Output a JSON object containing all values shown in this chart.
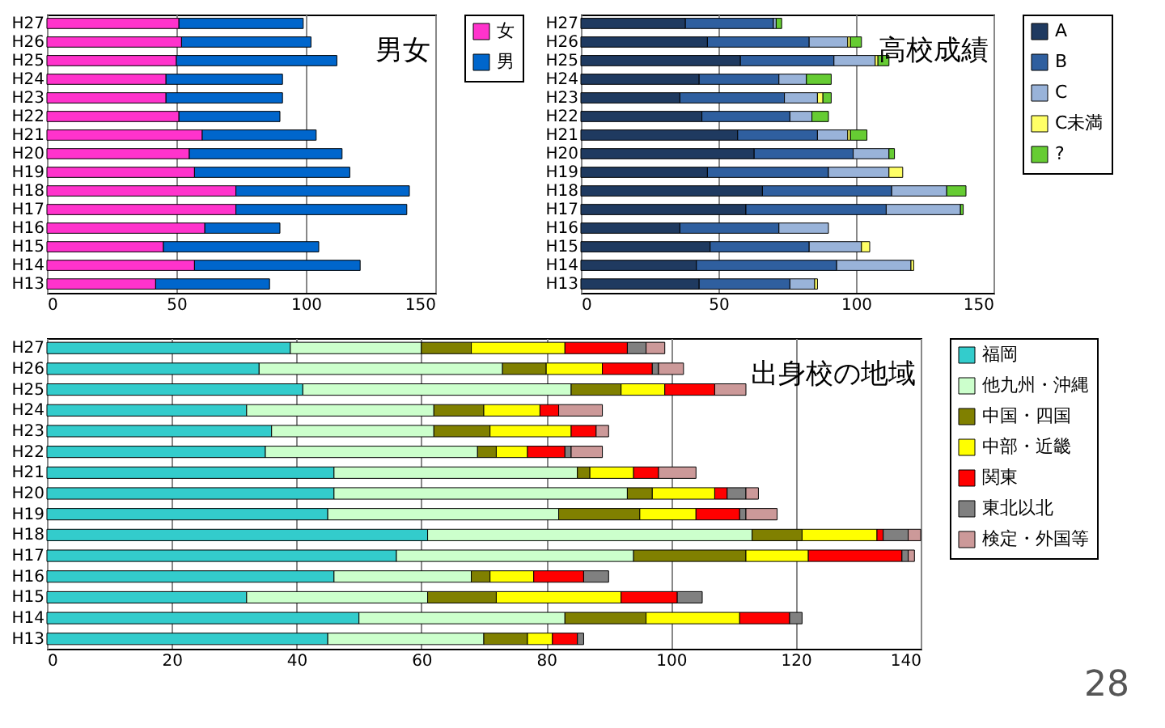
{
  "chart_data": [
    {
      "type": "bar",
      "title": "男女",
      "orientation": "horizontal",
      "stacked": true,
      "categories": [
        "H27",
        "H26",
        "H25",
        "H24",
        "H23",
        "H22",
        "H21",
        "H20",
        "H19",
        "H18",
        "H17",
        "H16",
        "H15",
        "H14",
        "H13"
      ],
      "xlim": [
        0,
        150
      ],
      "xticks": [
        0,
        50,
        100,
        150
      ],
      "grid": "x",
      "legend": "right",
      "series": [
        {
          "name": "女",
          "color": "#ff33cc",
          "values": [
            51,
            52,
            50,
            46,
            46,
            51,
            60,
            55,
            57,
            73,
            73,
            61,
            45,
            57,
            42
          ]
        },
        {
          "name": "男",
          "color": "#0066cc",
          "values": [
            48,
            50,
            62,
            45,
            45,
            39,
            44,
            59,
            60,
            67,
            66,
            29,
            60,
            64,
            44
          ]
        }
      ]
    },
    {
      "type": "bar",
      "title": "高校成績",
      "orientation": "horizontal",
      "stacked": true,
      "categories": [
        "H27",
        "H26",
        "H25",
        "H24",
        "H23",
        "H22",
        "H21",
        "H20",
        "H19",
        "H18",
        "H17",
        "H16",
        "H15",
        "H14",
        "H13"
      ],
      "xlim": [
        0,
        150
      ],
      "xticks": [
        0,
        50,
        100,
        150
      ],
      "grid": "x",
      "legend": "right",
      "series": [
        {
          "name": "A",
          "color": "#1f3a60",
          "values": [
            38,
            46,
            58,
            43,
            36,
            44,
            57,
            63,
            46,
            66,
            60,
            36,
            47,
            42,
            43
          ]
        },
        {
          "name": "B",
          "color": "#2f5f9f",
          "values": [
            32,
            37,
            34,
            29,
            38,
            32,
            29,
            36,
            44,
            47,
            51,
            36,
            36,
            51,
            33
          ]
        },
        {
          "name": "C",
          "color": "#99b3d9",
          "values": [
            1,
            14,
            15,
            10,
            12,
            8,
            11,
            13,
            22,
            20,
            27,
            18,
            19,
            27,
            9
          ]
        },
        {
          "name": "C未満",
          "color": "#ffff66",
          "values": [
            null,
            1,
            1,
            null,
            2,
            null,
            1,
            null,
            5,
            null,
            null,
            null,
            3,
            1,
            1
          ]
        },
        {
          "name": "?",
          "color": "#66cc33",
          "values": [
            2,
            4,
            4,
            9,
            3,
            6,
            6,
            2,
            null,
            7,
            1,
            null,
            null,
            null,
            null
          ]
        }
      ]
    },
    {
      "type": "bar",
      "title": "出身校の地域",
      "orientation": "horizontal",
      "stacked": true,
      "categories": [
        "H27",
        "H26",
        "H25",
        "H24",
        "H23",
        "H22",
        "H21",
        "H20",
        "H19",
        "H18",
        "H17",
        "H16",
        "H15",
        "H14",
        "H13"
      ],
      "xlim": [
        0,
        140
      ],
      "xticks": [
        0,
        20,
        40,
        60,
        80,
        100,
        120,
        140
      ],
      "grid": "x",
      "legend": "right",
      "annotations": [
        "28"
      ],
      "series": [
        {
          "name": "福岡",
          "color": "#33cccc",
          "values": [
            39,
            34,
            41,
            32,
            36,
            35,
            46,
            46,
            45,
            61,
            56,
            46,
            32,
            50,
            45
          ]
        },
        {
          "name": "他九州・沖縄",
          "color": "#ccffcc",
          "values": [
            21,
            39,
            43,
            30,
            26,
            34,
            39,
            47,
            37,
            52,
            38,
            22,
            29,
            33,
            25
          ]
        },
        {
          "name": "中国・四国",
          "color": "#808000",
          "values": [
            8,
            7,
            8,
            8,
            9,
            3,
            2,
            4,
            13,
            8,
            18,
            3,
            11,
            13,
            7
          ]
        },
        {
          "name": "中部・近畿",
          "color": "#ffff00",
          "values": [
            15,
            9,
            7,
            9,
            13,
            5,
            7,
            10,
            9,
            12,
            10,
            7,
            20,
            15,
            4
          ]
        },
        {
          "name": "関東",
          "color": "#ff0000",
          "values": [
            10,
            8,
            8,
            3,
            4,
            6,
            4,
            2,
            7,
            1,
            15,
            8,
            9,
            8,
            4
          ]
        },
        {
          "name": "東北以北",
          "color": "#808080",
          "values": [
            3,
            1,
            null,
            null,
            null,
            1,
            null,
            3,
            1,
            4,
            1,
            4,
            4,
            2,
            1
          ]
        },
        {
          "name": "検定・外国等",
          "color": "#cc9999",
          "values": [
            3,
            4,
            5,
            7,
            2,
            5,
            6,
            2,
            5,
            2,
            1,
            null,
            null,
            null,
            null
          ]
        }
      ]
    }
  ]
}
